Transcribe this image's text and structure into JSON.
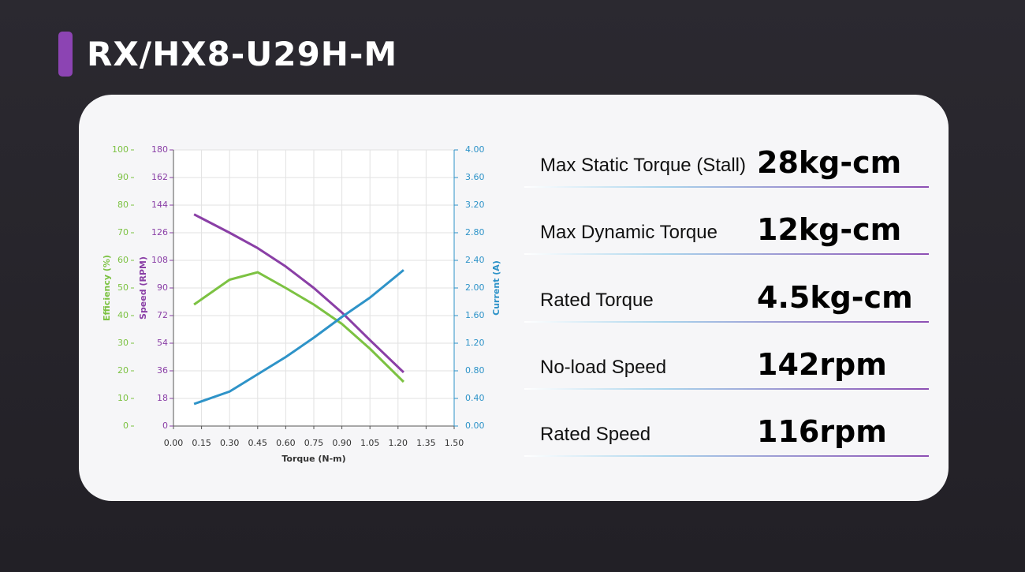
{
  "header": {
    "title": "RX/HX8-U29H-M"
  },
  "chart_data": {
    "type": "line",
    "xlabel": "Torque (N-m)",
    "ylabel": "Speed (RPM)",
    "y2label": "Current (A)",
    "y3label": "Efficiency (%)",
    "x": [
      0.11,
      0.3,
      0.45,
      0.6,
      0.75,
      0.9,
      1.05,
      1.23
    ],
    "xlim": [
      0,
      1.5
    ],
    "xticks": [
      {
        "value": 0,
        "label": "0.00"
      },
      0.15,
      {
        "value": 0.3,
        "label": "0.30"
      },
      0.45,
      {
        "value": 0.6,
        "label": "0.60"
      },
      0.75,
      {
        "value": 0.9,
        "label": "0.90"
      },
      1.05,
      {
        "value": 1.2,
        "label": "1.20"
      },
      1.35,
      {
        "value": 1.5,
        "label": "1.50"
      }
    ],
    "ylim": [
      0,
      180
    ],
    "yticks": [
      0,
      18,
      36,
      54,
      72,
      90,
      108,
      126,
      144,
      162,
      180
    ],
    "y2lim": [
      0,
      4
    ],
    "y2ticks": [
      {
        "value": 0,
        "label": "0.00"
      },
      {
        "value": 0.4,
        "label": "0.40"
      },
      {
        "value": 0.8,
        "label": "0.80"
      },
      {
        "value": 1.2,
        "label": "1.20"
      },
      {
        "value": 1.6,
        "label": "1.60"
      },
      {
        "value": 2,
        "label": "2.00"
      },
      {
        "value": 2.4,
        "label": "2.40"
      },
      {
        "value": 2.8,
        "label": "2.80"
      },
      {
        "value": 3.2,
        "label": "3.20"
      },
      {
        "value": 3.6,
        "label": "3.60"
      },
      {
        "value": 4,
        "label": "4.00"
      }
    ],
    "y3lim": [
      0,
      100
    ],
    "y3ticks": [
      0,
      10,
      20,
      30,
      40,
      50,
      60,
      70,
      80,
      90,
      100
    ],
    "grid": true,
    "series": [
      {
        "name": "Speed",
        "color": "#8a3fa6",
        "axis": "y",
        "values": [
          138,
          126,
          116,
          104,
          90,
          74,
          56,
          35
        ]
      },
      {
        "name": "Efficiency",
        "color": "#7cc242",
        "axis": "y3",
        "values": [
          44,
          53,
          55.7,
          50,
          44,
          37,
          28,
          16
        ]
      },
      {
        "name": "Current",
        "color": "#2e93c8",
        "axis": "y2",
        "values": [
          0.32,
          0.5,
          0.75,
          1.0,
          1.28,
          1.58,
          1.86,
          2.26
        ]
      }
    ]
  },
  "specs": [
    {
      "label": "Max Static Torque (Stall)",
      "value": "28kg-cm"
    },
    {
      "label": "Max Dynamic Torque",
      "value": "12kg-cm"
    },
    {
      "label": "Rated Torque",
      "value": "4.5kg-cm"
    },
    {
      "label": "No-load Speed",
      "value": "142rpm"
    },
    {
      "label": "Rated Speed",
      "value": "116rpm"
    }
  ]
}
